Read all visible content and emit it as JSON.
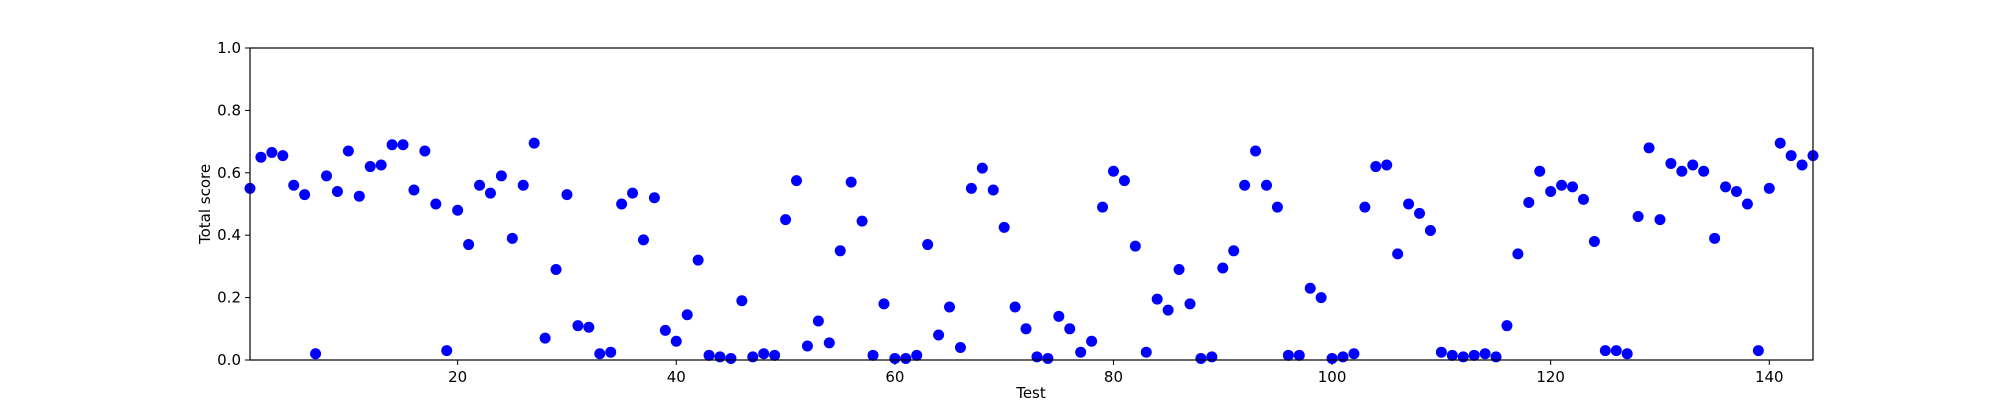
{
  "chart_data": {
    "type": "scatter",
    "title": "",
    "xlabel": "Test",
    "ylabel": "Total score",
    "xlim": [
      1,
      144
    ],
    "ylim": [
      0,
      1
    ],
    "x_ticks": [
      20,
      40,
      60,
      80,
      100,
      120,
      140
    ],
    "x_tick_labels": [
      "20",
      "40",
      "60",
      "80",
      "100",
      "120",
      "140"
    ],
    "y_ticks": [
      0.0,
      0.2,
      0.4,
      0.6,
      0.8,
      1.0
    ],
    "y_tick_labels": [
      "0.0",
      "0.2",
      "0.4",
      "0.6",
      "0.8",
      "1.0"
    ],
    "grid": false,
    "marker_color": "#0000ff",
    "series": [
      {
        "x": [
          1,
          2,
          3,
          4,
          5,
          6,
          7,
          8,
          9,
          10,
          11,
          12,
          13,
          14,
          15,
          16,
          17,
          18,
          19,
          20,
          21,
          22,
          23,
          24,
          25,
          26,
          27,
          28,
          29,
          30,
          31,
          32,
          33,
          34,
          35,
          36,
          37,
          38,
          39,
          40,
          41,
          42,
          43,
          44,
          45,
          46,
          47,
          48,
          49,
          50,
          51,
          52,
          53,
          54,
          55,
          56,
          57,
          58,
          59,
          60,
          61,
          62,
          63,
          64,
          65,
          66,
          67,
          68,
          69,
          70,
          71,
          72,
          73,
          74,
          75,
          76,
          77,
          78,
          79,
          80,
          81,
          82,
          83,
          84,
          85,
          86,
          87,
          88,
          89,
          90,
          91,
          92,
          93,
          94,
          95,
          96,
          97,
          98,
          99,
          100,
          101,
          102,
          103,
          104,
          105,
          106,
          107,
          108,
          109,
          110,
          111,
          112,
          113,
          114,
          115,
          116,
          117,
          118,
          119,
          120,
          121,
          122,
          123,
          124,
          125,
          126,
          127,
          128,
          129,
          130,
          131,
          132,
          133,
          134,
          135,
          136,
          137,
          138,
          139,
          140,
          141,
          142,
          143,
          144
        ],
        "y": [
          0.55,
          0.65,
          0.665,
          0.655,
          0.56,
          0.53,
          0.02,
          0.59,
          0.54,
          0.67,
          0.525,
          0.62,
          0.625,
          0.69,
          0.69,
          0.545,
          0.67,
          0.5,
          0.03,
          0.48,
          0.37,
          0.56,
          0.535,
          0.59,
          0.39,
          0.56,
          0.695,
          0.07,
          0.29,
          0.53,
          0.11,
          0.105,
          0.02,
          0.025,
          0.5,
          0.535,
          0.385,
          0.52,
          0.095,
          0.06,
          0.145,
          0.32,
          0.015,
          0.01,
          0.005,
          0.19,
          0.01,
          0.02,
          0.015,
          0.45,
          0.575,
          0.045,
          0.125,
          0.055,
          0.35,
          0.57,
          0.445,
          0.015,
          0.18,
          0.005,
          0.005,
          0.015,
          0.37,
          0.08,
          0.17,
          0.04,
          0.55,
          0.615,
          0.545,
          0.425,
          0.17,
          0.1,
          0.01,
          0.005,
          0.14,
          0.1,
          0.025,
          0.06,
          0.49,
          0.605,
          0.575,
          0.365,
          0.025,
          0.195,
          0.16,
          0.29,
          0.18,
          0.005,
          0.01,
          0.295,
          0.35,
          0.56,
          0.67,
          0.56,
          0.49,
          0.015,
          0.015,
          0.23,
          0.2,
          0.005,
          0.01,
          0.02,
          0.49,
          0.62,
          0.625,
          0.34,
          0.5,
          0.47,
          0.415,
          0.025,
          0.015,
          0.01,
          0.015,
          0.02,
          0.01,
          0.11,
          0.34,
          0.505,
          0.605,
          0.54,
          0.56,
          0.555,
          0.515,
          0.38,
          0.03,
          0.03,
          0.02,
          0.46,
          0.68,
          0.45,
          0.63,
          0.605,
          0.625,
          0.605,
          0.39,
          0.555,
          0.54,
          0.5,
          0.03,
          0.55,
          0.695,
          0.655,
          0.625,
          0.655
        ]
      }
    ]
  }
}
